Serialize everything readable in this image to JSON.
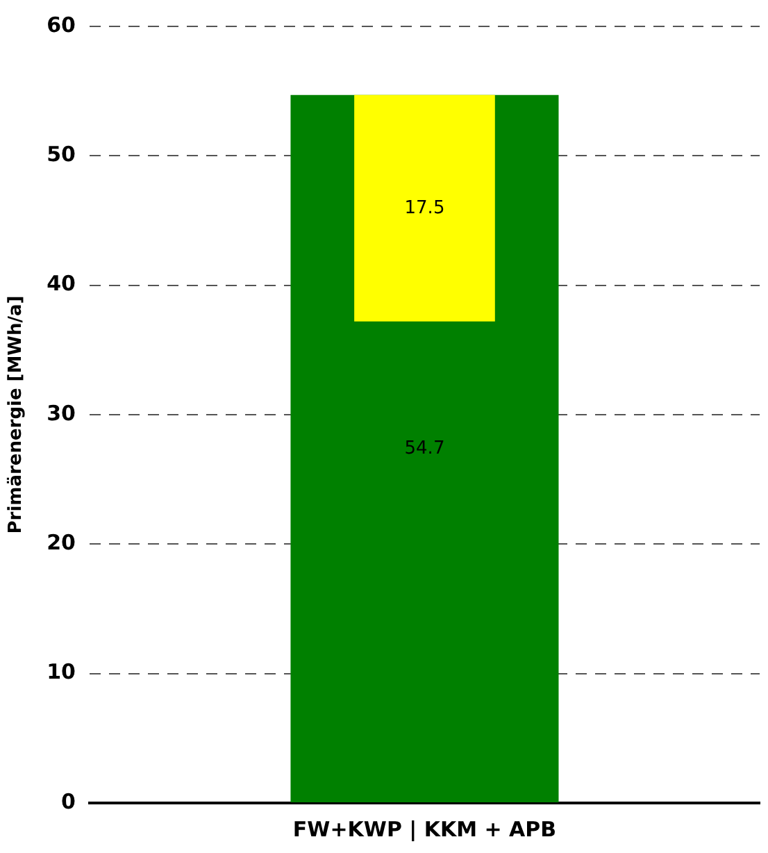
{
  "chart_data": {
    "type": "bar",
    "categories": [
      "FW+KWP | KKM + APB"
    ],
    "ylabel": "Primärenergie [MWh/a]",
    "series": [
      {
        "color": "#008000",
        "values": [
          54.7
        ]
      },
      {
        "color": "#ffff00",
        "values": [
          17.5
        ],
        "base": [
          37.2
        ]
      }
    ],
    "ylim": [
      0,
      60
    ],
    "yticks": [
      0,
      10,
      20,
      30,
      40,
      50,
      60
    ],
    "grid": "y",
    "data_labels": true,
    "legend": false
  }
}
